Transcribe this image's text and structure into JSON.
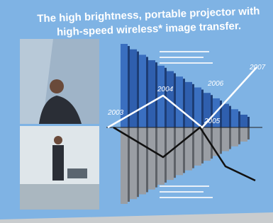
{
  "slide": {
    "title": {
      "line1": "The high brightness, portable projector with",
      "line2": "high-speed wireless* image transfer."
    },
    "year_labels": [
      "2003",
      "2004",
      "2005",
      "2006",
      "2007"
    ]
  }
}
